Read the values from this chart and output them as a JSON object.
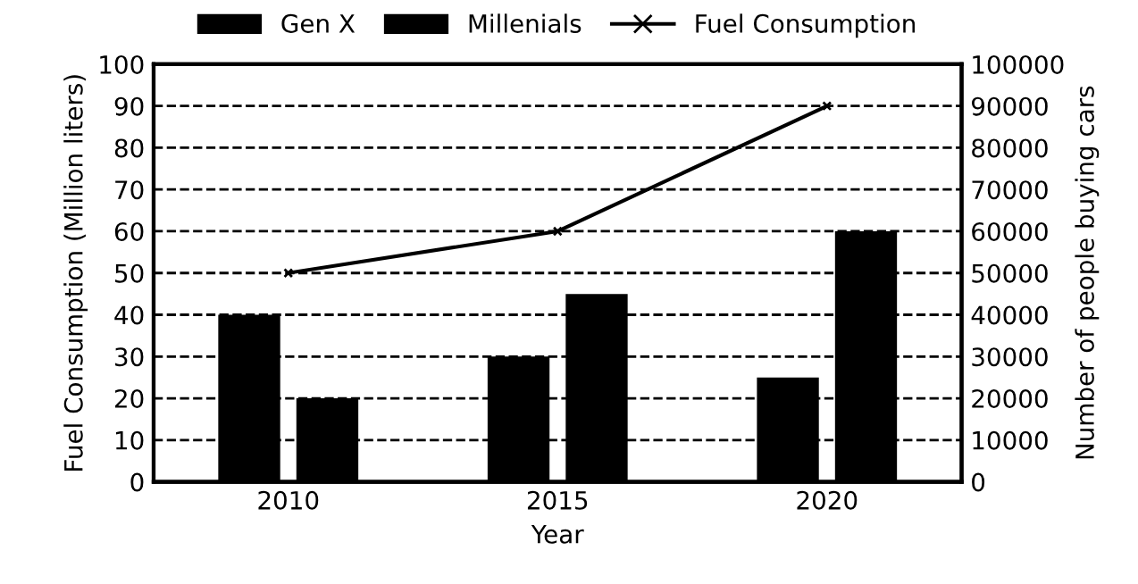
{
  "chart_data": {
    "type": "bar",
    "xlabel": "Year",
    "ylabel": "Fuel Consumption (Million liters)",
    "y2label": "Number of people buying cars",
    "categories": [
      "2010",
      "2015",
      "2020"
    ],
    "series": [
      {
        "name": "Gen X",
        "color": "#000000",
        "axis": "y2",
        "values": [
          40000,
          30000,
          25000
        ]
      },
      {
        "name": "Millenials",
        "color": "#000000",
        "axis": "y2",
        "values": [
          20000,
          45000,
          60000
        ]
      },
      {
        "name": "Fuel Consumption",
        "type": "line",
        "color": "#000000",
        "marker": "cross",
        "line_style": "solid",
        "values": [
          50,
          60,
          90
        ]
      }
    ],
    "ylim": [
      0,
      100
    ],
    "yticks": [
      0,
      10,
      20,
      30,
      40,
      50,
      60,
      70,
      80,
      90,
      100
    ],
    "y2lim": [
      0,
      100000
    ],
    "y2ticks": [
      0,
      10000,
      20000,
      30000,
      40000,
      50000,
      60000,
      70000,
      80000,
      90000,
      100000
    ],
    "grid": "y",
    "legend": "top"
  }
}
